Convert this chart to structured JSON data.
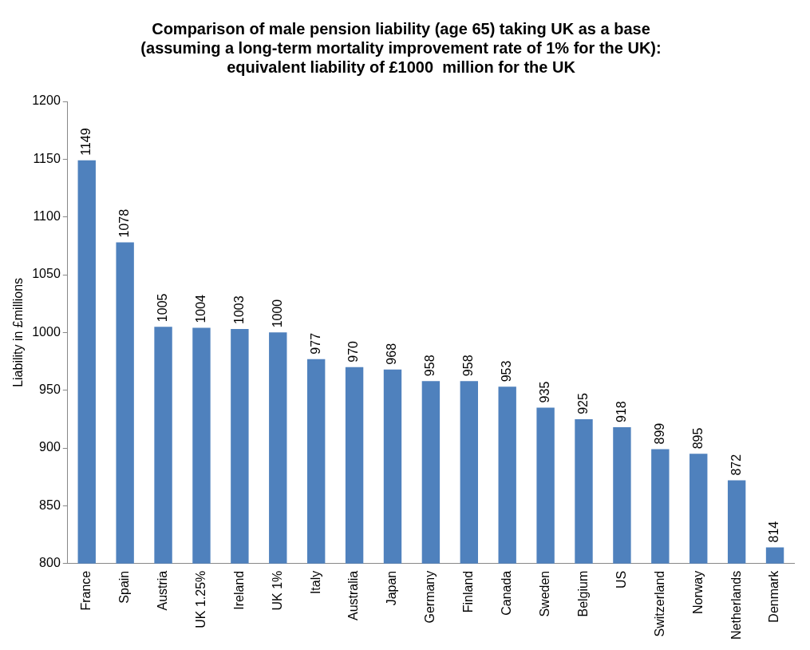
{
  "chart_data": {
    "type": "bar",
    "title": "Comparison of male pension liability (age 65) taking UK as a base\n(assuming a long-term mortality improvement rate of 1% for the UK):\nequivalent liability of £1000  million for the UK",
    "ylabel": "Liability in £millions",
    "categories": [
      "France",
      "Spain",
      "Austria",
      "UK 1.25%",
      "Ireland",
      "UK 1%",
      "Italy",
      "Australia",
      "Japan",
      "Germany",
      "Finland",
      "Canada",
      "Sweden",
      "Belgium",
      "US",
      "Switzerland",
      "Norway",
      "Netherlands",
      "Denmark"
    ],
    "values": [
      1149,
      1078,
      1005,
      1004,
      1003,
      1000,
      977,
      970,
      968,
      958,
      958,
      953,
      935,
      925,
      918,
      899,
      895,
      872,
      814
    ],
    "color": "#4f81bd",
    "ylim": [
      800,
      1200
    ],
    "yticks": [
      800,
      850,
      900,
      950,
      1000,
      1050,
      1100,
      1150,
      1200
    ],
    "grid": false,
    "legend": false,
    "data_labels": true
  }
}
